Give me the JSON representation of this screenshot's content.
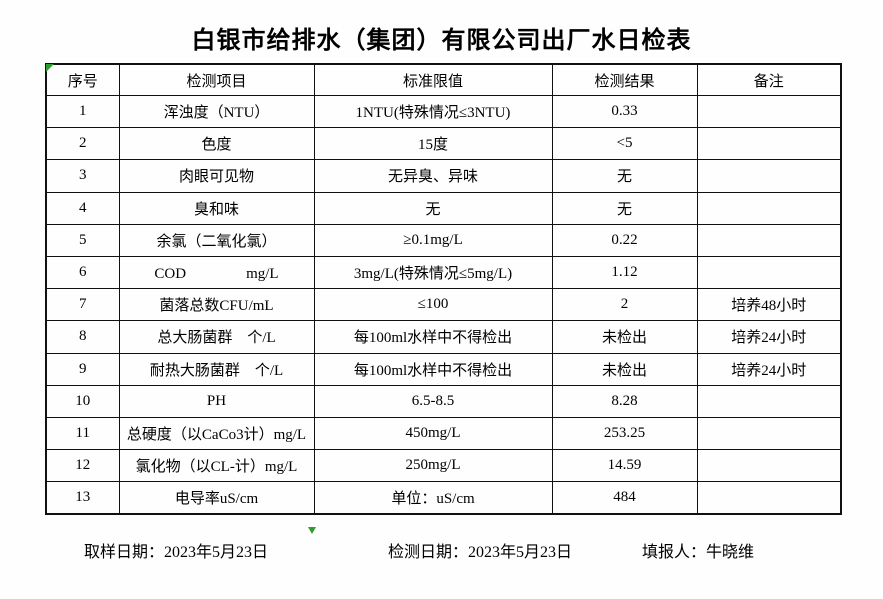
{
  "page": {
    "title": "白银市给排水（集团）有限公司出厂水日检表"
  },
  "table": {
    "headers": [
      "序号",
      "检测项目",
      "标准限值",
      "检测结果",
      "备注"
    ],
    "rows": [
      {
        "no": "1",
        "item": "浑浊度（NTU）",
        "standard": "1NTU(特殊情况≤3NTU)",
        "result": "0.33",
        "remark": ""
      },
      {
        "no": "2",
        "item": "色度",
        "standard": "15度",
        "result": "<5",
        "remark": ""
      },
      {
        "no": "3",
        "item": "肉眼可见物",
        "standard": "无异臭、异味",
        "result": "无",
        "remark": ""
      },
      {
        "no": "4",
        "item": "臭和味",
        "standard": "无",
        "result": "无",
        "remark": ""
      },
      {
        "no": "5",
        "item": "余氯（二氧化氯）",
        "standard": "≥0.1mg/L",
        "result": "0.22",
        "remark": ""
      },
      {
        "no": "6",
        "item": "COD　　　　mg/L",
        "standard": "3mg/L(特殊情况≤5mg/L)",
        "result": "1.12",
        "remark": ""
      },
      {
        "no": "7",
        "item": "菌落总数CFU/mL",
        "standard": "≤100",
        "result": "2",
        "remark": "培养48小时"
      },
      {
        "no": "8",
        "item": "总大肠菌群　个/L",
        "standard": "每100ml水样中不得检出",
        "result": "未检出",
        "remark": "培养24小时"
      },
      {
        "no": "9",
        "item": "耐热大肠菌群　个/L",
        "standard": "每100ml水样中不得检出",
        "result": "未检出",
        "remark": "培养24小时"
      },
      {
        "no": "10",
        "item": "PH",
        "standard": "6.5-8.5",
        "result": "8.28",
        "remark": ""
      },
      {
        "no": "11",
        "item": "总硬度（以CaCo3计）mg/L",
        "standard": "450mg/L",
        "result": "253.25",
        "remark": ""
      },
      {
        "no": "12",
        "item": "氯化物（以CL-计）mg/L",
        "standard": "250mg/L",
        "result": "14.59",
        "remark": ""
      },
      {
        "no": "13",
        "item": "电导率uS/cm",
        "standard": "单位：uS/cm",
        "result": "484",
        "remark": ""
      }
    ]
  },
  "footer": {
    "sampling": "取样日期：2023年5月23日",
    "testing": "检测日期：2023年5月23日",
    "reporter": "填报人：牛晓维"
  },
  "icons": {
    "top_left_marker": "excel-error-indicator-green-triangle",
    "bottom_marker": "green-triangle"
  },
  "colors": {
    "marker_green": "#2f9e2f",
    "border": "#111111",
    "text": "#000000",
    "background": "#fefefe"
  }
}
